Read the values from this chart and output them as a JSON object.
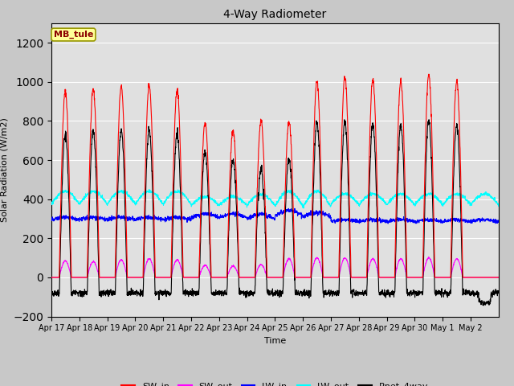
{
  "title": "4-Way Radiometer",
  "xlabel": "Time",
  "ylabel": "Solar Radiation (W/m2)",
  "ylim": [
    -200,
    1300
  ],
  "yticks": [
    -200,
    0,
    200,
    400,
    600,
    800,
    1000,
    1200
  ],
  "num_days": 16,
  "colors": {
    "SW_in": "#FF0000",
    "SW_out": "#FF00FF",
    "LW_in": "#0000FF",
    "LW_out": "#00FFFF",
    "Rnet_4way": "#000000"
  },
  "station_label": "MB_tule",
  "station_label_color": "#8B0000",
  "station_box_facecolor": "#FFFF99",
  "station_box_edgecolor": "#999900",
  "fig_facecolor": "#C8C8C8",
  "ax_facecolor": "#E0E0E0",
  "grid_color": "#FFFFFF",
  "tick_labels": [
    "Apr 17",
    "Apr 18",
    "Apr 19",
    "Apr 20",
    "Apr 21",
    "Apr 22",
    "Apr 23",
    "Apr 24",
    "Apr 25",
    "Apr 26",
    "Apr 27",
    "Apr 28",
    "Apr 29",
    "Apr 30",
    "May 1",
    "May 2"
  ]
}
